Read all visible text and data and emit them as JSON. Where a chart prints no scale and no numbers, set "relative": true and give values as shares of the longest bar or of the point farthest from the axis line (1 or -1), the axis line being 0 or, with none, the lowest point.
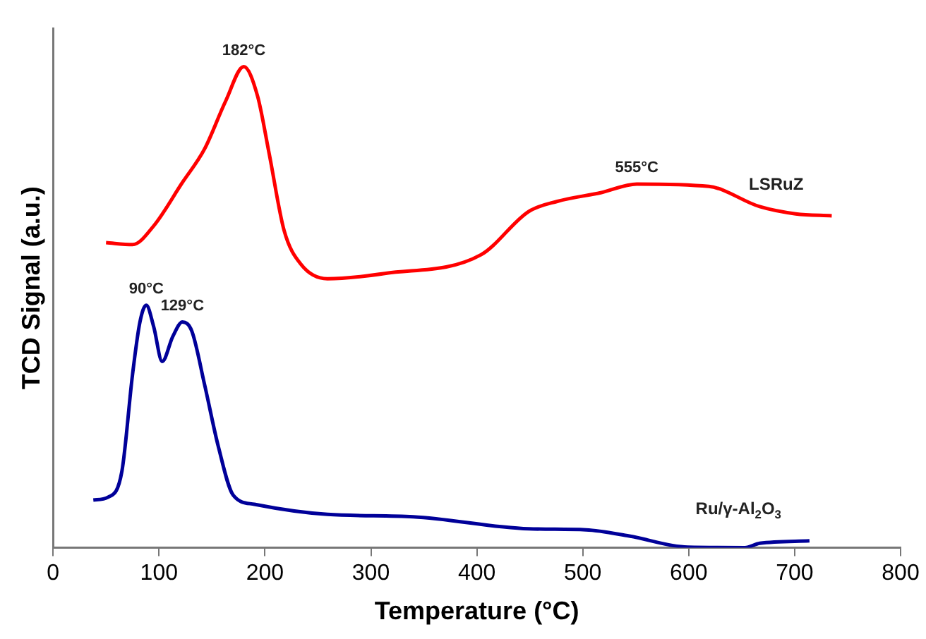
{
  "chart_data": {
    "type": "line",
    "relative": true,
    "xlabel": "Temperature (°C)",
    "ylabel": "TCD Signal (a.u.)",
    "xlim": [
      0,
      800
    ],
    "xticks": [
      0,
      100,
      200,
      300,
      400,
      500,
      600,
      700,
      800
    ],
    "grid": false,
    "legend": false,
    "marker": "none",
    "line_style": "solid",
    "series": [
      {
        "name": "LSRuZ",
        "color": "#ff0000",
        "x": [
          50,
          75,
          95,
          122,
          143,
          163,
          180,
          193,
          204,
          218,
          234,
          259,
          313,
          404,
          449,
          476,
          517,
          551,
          619,
          667,
          701,
          735
        ],
        "values": [
          0.634,
          0.63,
          0.669,
          0.759,
          0.829,
          0.929,
          1,
          0.939,
          0.819,
          0.66,
          0.589,
          0.559,
          0.57,
          0.609,
          0.699,
          0.72,
          0.738,
          0.756,
          0.751,
          0.709,
          0.694,
          0.69
        ]
      },
      {
        "name": "Ru/γ-Al$_{2}$O$_{3}$",
        "color": "#000099",
        "x": [
          38,
          52,
          65,
          75,
          82,
          88,
          95,
          103,
          113,
          122,
          131,
          143,
          156,
          170,
          190,
          259,
          340,
          449,
          503,
          544,
          599,
          653,
          667,
          714
        ],
        "values": [
          0.099,
          0.105,
          0.159,
          0.36,
          0.469,
          0.504,
          0.459,
          0.387,
          0.439,
          0.469,
          0.45,
          0.339,
          0.21,
          0.109,
          0.09,
          0.069,
          0.064,
          0.039,
          0.037,
          0.024,
          0.001,
          0,
          0.009,
          0.014
        ]
      }
    ],
    "annotations": [
      {
        "text": "182°C",
        "x": 180,
        "y": 1
      },
      {
        "text": "555°C",
        "x": 551,
        "y": 0.756
      },
      {
        "text": "90°C",
        "x": 88,
        "y": 0.504
      },
      {
        "text": "129°C",
        "x": 122,
        "y": 0.469
      }
    ]
  }
}
